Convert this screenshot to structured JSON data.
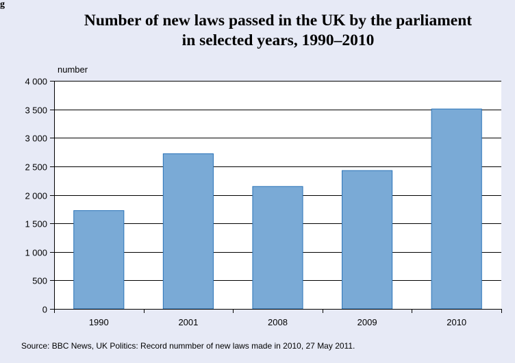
{
  "figure": {
    "corner_mark": "g"
  },
  "chart_data": {
    "type": "bar",
    "title_lines": [
      "Number of new laws passed in the UK by the parliament",
      "in selected years, 1990–2010"
    ],
    "ylabel": "number",
    "xlabel": "",
    "categories": [
      "1990",
      "2001",
      "2008",
      "2009",
      "2010"
    ],
    "values": [
      1724,
      2721,
      2147,
      2426,
      3506
    ],
    "ylim": [
      0,
      4000
    ],
    "yticks": [
      0,
      500,
      1000,
      1500,
      2000,
      2500,
      3000,
      3500,
      4000
    ],
    "ytick_labels": [
      "0",
      "500",
      "1 000",
      "1 500",
      "2 000",
      "2 500",
      "3 000",
      "3 500",
      "4 000"
    ],
    "grid": true,
    "bar_color": "#7aaad6",
    "bar_edge_color": "#2a73b8",
    "background_color": "#e7eaf6",
    "source": "Source: BBC News, UK Politics: Record nummber of new laws made in 2010,  27 May 2011."
  }
}
